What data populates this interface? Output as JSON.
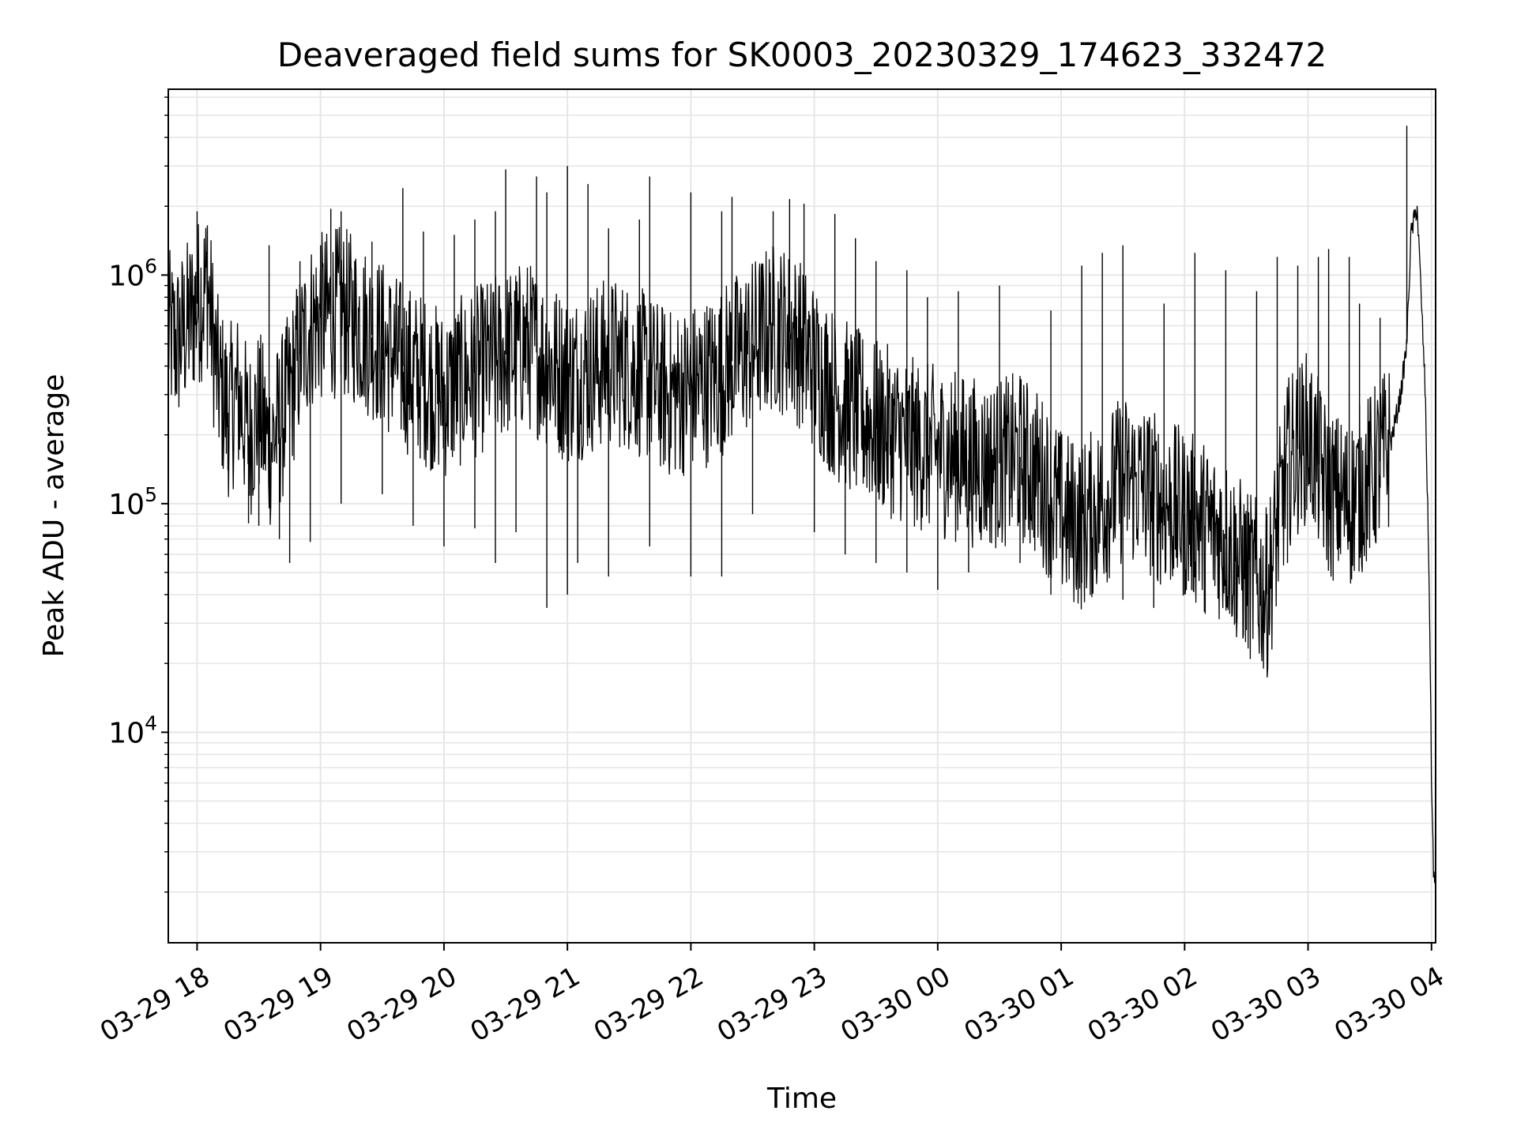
{
  "chart_data": {
    "type": "line",
    "title": "Deaveraged field sums for SK0003_20230329_174623_332472",
    "xlabel": "Time",
    "ylabel": "Peak ADU - average",
    "yscale": "log",
    "grid": true,
    "grid_color": "#e6e6e6",
    "line_color": "#000000",
    "x_range": [
      "03-29 17:46",
      "03-30 04:02"
    ],
    "ylim": [
      1200,
      6500000
    ],
    "x_ticks": [
      "03-29 18",
      "03-29 19",
      "03-29 20",
      "03-29 21",
      "03-29 22",
      "03-29 23",
      "03-30 00",
      "03-30 01",
      "03-30 02",
      "03-30 03",
      "03-30 04"
    ],
    "y_ticks": [
      {
        "base": "10",
        "exp": "4",
        "value": 10000
      },
      {
        "base": "10",
        "exp": "5",
        "value": 100000
      },
      {
        "base": "10",
        "exp": "6",
        "value": 1000000
      }
    ],
    "series": [
      {
        "x": [
          "03-29 17:46",
          "03-29 17:50",
          "03-29 17:55",
          "03-29 18:00",
          "03-29 18:05",
          "03-29 18:10",
          "03-29 18:15",
          "03-29 18:20",
          "03-29 18:25",
          "03-29 18:30",
          "03-29 18:35",
          "03-29 18:40",
          "03-29 18:45",
          "03-29 18:50",
          "03-29 18:55",
          "03-29 19:00",
          "03-29 19:10",
          "03-29 19:20",
          "03-29 19:30",
          "03-29 19:40",
          "03-29 19:50",
          "03-29 20:00",
          "03-29 20:10",
          "03-29 20:20",
          "03-29 20:30",
          "03-29 20:40",
          "03-29 20:50",
          "03-29 21:00",
          "03-29 21:10",
          "03-29 21:20",
          "03-29 21:30",
          "03-29 21:40",
          "03-29 21:50",
          "03-29 22:00",
          "03-29 22:10",
          "03-29 22:20",
          "03-29 22:30",
          "03-29 22:40",
          "03-29 22:50",
          "03-29 23:00",
          "03-29 23:10",
          "03-29 23:20",
          "03-29 23:30",
          "03-29 23:40",
          "03-29 23:50",
          "03-30 00:00",
          "03-30 00:10",
          "03-30 00:20",
          "03-30 00:30",
          "03-30 00:40",
          "03-30 00:50",
          "03-30 01:00",
          "03-30 01:10",
          "03-30 01:20",
          "03-30 01:30",
          "03-30 01:40",
          "03-30 01:50",
          "03-30 02:00",
          "03-30 02:10",
          "03-30 02:20",
          "03-30 02:30",
          "03-30 02:40",
          "03-30 02:50",
          "03-30 03:00",
          "03-30 03:10",
          "03-30 03:20",
          "03-30 03:30",
          "03-30 03:40",
          "03-30 03:45",
          "03-30 03:48",
          "03-30 03:50",
          "03-30 03:53",
          "03-30 03:55",
          "03-30 03:57",
          "03-30 03:59",
          "03-30 04:00",
          "03-30 04:01",
          "03-30 04:02"
        ],
        "values": [
          550000,
          500000,
          600000,
          750000,
          900000,
          350000,
          250000,
          300000,
          200000,
          250000,
          180000,
          220000,
          300000,
          450000,
          600000,
          650000,
          700000,
          600000,
          500000,
          400000,
          350000,
          300000,
          350000,
          400000,
          450000,
          500000,
          420000,
          350000,
          380000,
          420000,
          400000,
          350000,
          300000,
          320000,
          350000,
          420000,
          500000,
          600000,
          550000,
          400000,
          300000,
          250000,
          220000,
          200000,
          180000,
          170000,
          160000,
          150000,
          150000,
          160000,
          130000,
          90000,
          80000,
          100000,
          130000,
          120000,
          100000,
          90000,
          80000,
          70000,
          50000,
          40000,
          150000,
          200000,
          110000,
          100000,
          130000,
          180000,
          300000,
          500000,
          1500000,
          2000000,
          800000,
          300000,
          40000,
          6000,
          2500,
          1900
        ]
      }
    ],
    "spikes": {
      "up": [
        [
          "03-29 18:00",
          1900000
        ],
        [
          "03-29 18:05",
          1650000
        ],
        [
          "03-29 18:35",
          1350000
        ],
        [
          "03-29 18:50",
          1150000
        ],
        [
          "03-29 19:00",
          1350000
        ],
        [
          "03-29 19:05",
          1950000
        ],
        [
          "03-29 19:10",
          1900000
        ],
        [
          "03-29 19:25",
          1400000
        ],
        [
          "03-29 19:40",
          2400000
        ],
        [
          "03-29 19:50",
          1550000
        ],
        [
          "03-29 20:05",
          1500000
        ],
        [
          "03-29 20:15",
          1750000
        ],
        [
          "03-29 20:25",
          1900000
        ],
        [
          "03-29 20:30",
          2900000
        ],
        [
          "03-29 20:45",
          2700000
        ],
        [
          "03-29 20:50",
          2300000
        ],
        [
          "03-29 21:00",
          3000000
        ],
        [
          "03-29 21:10",
          2500000
        ],
        [
          "03-29 21:20",
          1600000
        ],
        [
          "03-29 21:35",
          1750000
        ],
        [
          "03-29 21:40",
          2700000
        ],
        [
          "03-29 22:00",
          2300000
        ],
        [
          "03-29 22:15",
          1900000
        ],
        [
          "03-29 22:20",
          2200000
        ],
        [
          "03-29 22:40",
          1900000
        ],
        [
          "03-29 22:48",
          2150000
        ],
        [
          "03-29 22:55",
          2050000
        ],
        [
          "03-29 23:10",
          1850000
        ],
        [
          "03-29 23:20",
          1450000
        ],
        [
          "03-29 23:30",
          1150000
        ],
        [
          "03-29 23:45",
          1050000
        ],
        [
          "03-29 23:55",
          800000
        ],
        [
          "03-30 00:10",
          850000
        ],
        [
          "03-30 00:30",
          900000
        ],
        [
          "03-30 00:55",
          700000
        ],
        [
          "03-30 01:10",
          1100000
        ],
        [
          "03-30 01:20",
          1250000
        ],
        [
          "03-30 01:30",
          1350000
        ],
        [
          "03-30 01:50",
          750000
        ],
        [
          "03-30 02:05",
          1250000
        ],
        [
          "03-30 02:20",
          1050000
        ],
        [
          "03-30 02:35",
          850000
        ],
        [
          "03-30 02:45",
          1200000
        ],
        [
          "03-30 02:55",
          1100000
        ],
        [
          "03-30 03:05",
          1200000
        ],
        [
          "03-30 03:10",
          1300000
        ],
        [
          "03-30 03:20",
          1200000
        ],
        [
          "03-30 03:25",
          750000
        ],
        [
          "03-30 03:35",
          650000
        ],
        [
          "03-30 03:48",
          4500000
        ]
      ],
      "down": [
        [
          "03-29 18:15",
          140000
        ],
        [
          "03-29 18:25",
          82000
        ],
        [
          "03-29 18:30",
          80000
        ],
        [
          "03-29 18:40",
          70000
        ],
        [
          "03-29 18:45",
          55000
        ],
        [
          "03-29 18:55",
          68000
        ],
        [
          "03-29 19:10",
          100000
        ],
        [
          "03-29 19:30",
          110000
        ],
        [
          "03-29 19:45",
          80000
        ],
        [
          "03-29 20:00",
          65000
        ],
        [
          "03-29 20:15",
          78000
        ],
        [
          "03-29 20:25",
          55000
        ],
        [
          "03-29 20:35",
          75000
        ],
        [
          "03-29 20:50",
          35000
        ],
        [
          "03-29 21:00",
          40000
        ],
        [
          "03-29 21:05",
          55000
        ],
        [
          "03-29 21:20",
          48000
        ],
        [
          "03-29 21:40",
          65000
        ],
        [
          "03-29 22:00",
          48000
        ],
        [
          "03-29 22:15",
          48000
        ],
        [
          "03-29 22:30",
          90000
        ],
        [
          "03-29 23:00",
          75000
        ],
        [
          "03-29 23:15",
          60000
        ],
        [
          "03-29 23:30",
          55000
        ],
        [
          "03-29 23:45",
          50000
        ],
        [
          "03-30 00:00",
          42000
        ],
        [
          "03-30 00:15",
          50000
        ],
        [
          "03-30 00:40",
          55000
        ],
        [
          "03-30 00:55",
          40000
        ],
        [
          "03-30 01:10",
          45000
        ],
        [
          "03-30 01:30",
          38000
        ],
        [
          "03-30 01:45",
          35000
        ],
        [
          "03-30 02:00",
          40000
        ],
        [
          "03-30 02:10",
          33000
        ],
        [
          "03-30 02:25",
          30000
        ],
        [
          "03-30 02:30",
          28000
        ],
        [
          "03-30 02:40",
          90000
        ],
        [
          "03-30 02:50",
          55000
        ],
        [
          "03-30 03:10",
          65000
        ],
        [
          "03-30 03:20",
          70000
        ],
        [
          "03-30 03:25",
          95000
        ]
      ]
    }
  }
}
